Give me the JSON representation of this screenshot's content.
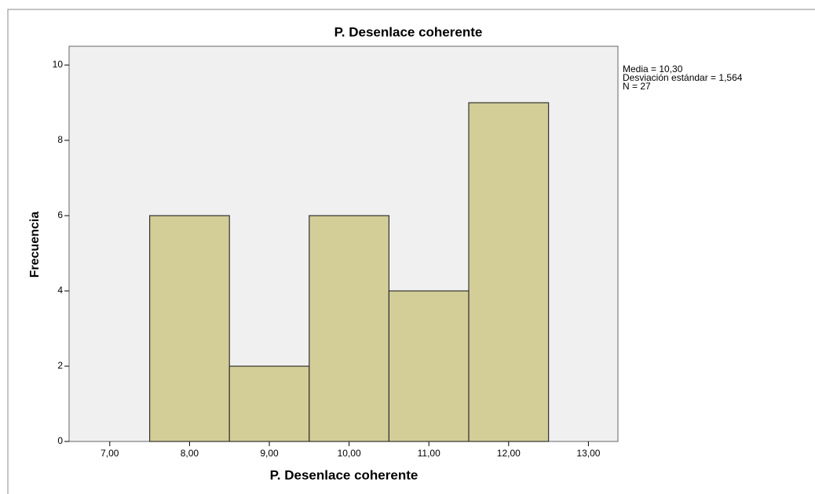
{
  "chart_data": {
    "type": "histogram",
    "title": "P. Desenlace coherente",
    "x_label": "P. Desenlace coherente",
    "y_label": "Frecuencia",
    "bins": [
      7.5,
      8.5,
      9.5,
      10.5,
      11.5,
      12.5
    ],
    "counts": [
      6,
      2,
      6,
      4,
      9
    ],
    "color": "#d3ce97",
    "xlim": [
      6.49,
      13.37
    ],
    "xticks": [
      {
        "value": 7,
        "label": "7,00"
      },
      {
        "value": 8,
        "label": "8,00"
      },
      {
        "value": 9,
        "label": "9,00"
      },
      {
        "value": 10,
        "label": "10,00"
      },
      {
        "value": 11,
        "label": "11,00"
      },
      {
        "value": 12,
        "label": "12,00"
      },
      {
        "value": 13,
        "label": "13,00"
      }
    ],
    "ylim": [
      0,
      10.5
    ],
    "yticks": [
      0,
      2,
      4,
      6,
      8,
      10
    ],
    "annotations": [
      "Media = 10,30",
      "Desviación estándar = 1,564",
      "N = 27"
    ]
  }
}
